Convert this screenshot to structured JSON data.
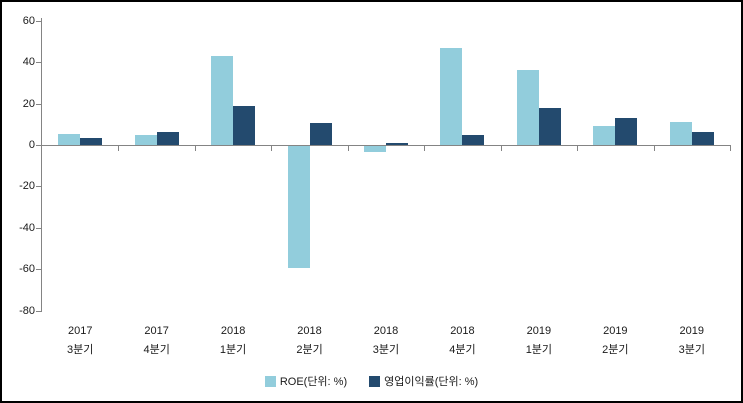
{
  "chart_data": {
    "type": "bar",
    "title": "",
    "xlabel": "",
    "ylabel": "",
    "categories": [
      {
        "year": "2017",
        "quarter": "3분기"
      },
      {
        "year": "2017",
        "quarter": "4분기"
      },
      {
        "year": "2018",
        "quarter": "1분기"
      },
      {
        "year": "2018",
        "quarter": "2분기"
      },
      {
        "year": "2018",
        "quarter": "3분기"
      },
      {
        "year": "2018",
        "quarter": "4분기"
      },
      {
        "year": "2019",
        "quarter": "1분기"
      },
      {
        "year": "2019",
        "quarter": "2분기"
      },
      {
        "year": "2019",
        "quarter": "3분기"
      }
    ],
    "series": [
      {
        "name": "ROE(단위: %)",
        "color": "#92CDDC",
        "values": [
          5.5,
          5,
          43,
          -59,
          -3,
          47,
          36,
          9,
          11
        ]
      },
      {
        "name": "영업이익률(단위: %)",
        "color": "#234A6E",
        "values": [
          3.5,
          6.5,
          19,
          10.5,
          1,
          5,
          18,
          13,
          6.5
        ]
      }
    ],
    "ylim": [
      -80,
      60
    ],
    "yticks": [
      60,
      40,
      20,
      0,
      -20,
      -40,
      -60,
      -80
    ],
    "grid": false,
    "legend_position": "bottom",
    "colors": {
      "axis": "#848484",
      "labels": "#1a1a1a",
      "background": "#ffffff",
      "frame_border": "#000000"
    }
  }
}
